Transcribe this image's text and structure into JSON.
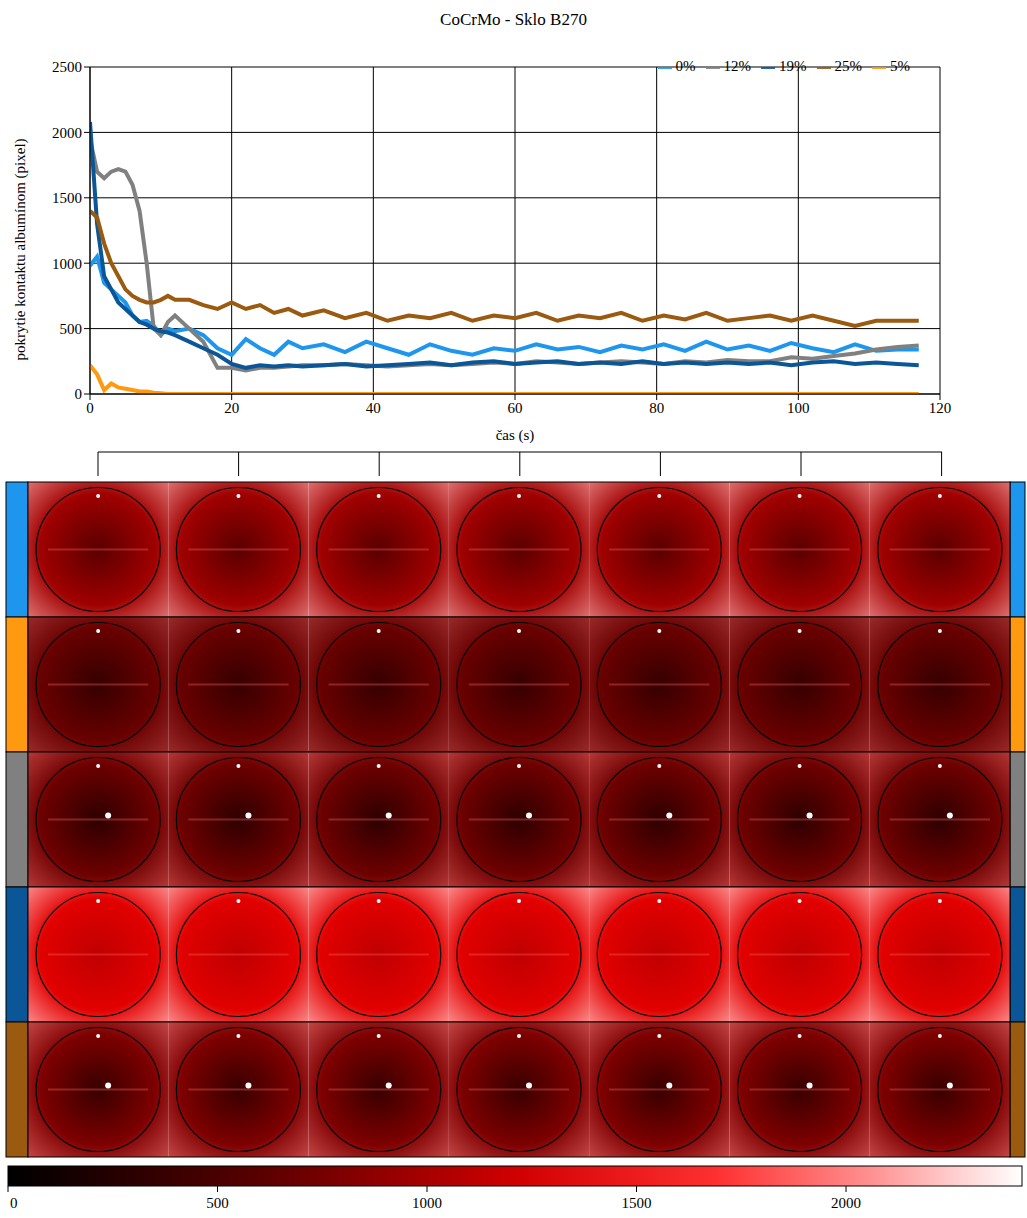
{
  "chart_data": {
    "type": "line",
    "title": "CoCrMo - Sklo B270",
    "x_label": "čas (s)",
    "y_label": "pokrytie kontaktu albumínom (pixel)",
    "x": [
      0,
      1,
      2,
      3,
      4,
      5,
      6,
      7,
      8,
      9,
      10,
      11,
      12,
      14,
      16,
      18,
      20,
      22,
      24,
      26,
      28,
      30,
      33,
      36,
      39,
      42,
      45,
      48,
      51,
      54,
      57,
      60,
      63,
      66,
      69,
      72,
      75,
      78,
      81,
      84,
      87,
      90,
      93,
      96,
      99,
      102,
      105,
      108,
      111,
      114,
      117
    ],
    "series": [
      {
        "name": "0%",
        "color": "#1e96ee",
        "values": [
          980,
          1050,
          850,
          800,
          750,
          700,
          600,
          550,
          560,
          520,
          450,
          500,
          480,
          500,
          450,
          350,
          300,
          420,
          350,
          300,
          400,
          350,
          380,
          320,
          400,
          350,
          300,
          380,
          330,
          300,
          350,
          330,
          380,
          340,
          360,
          320,
          370,
          340,
          380,
          330,
          400,
          340,
          370,
          330,
          390,
          350,
          320,
          380,
          330,
          340,
          340
        ]
      },
      {
        "name": "5%",
        "color": "#ff9a10",
        "values": [
          220,
          150,
          30,
          80,
          50,
          40,
          30,
          20,
          20,
          10,
          5,
          0,
          0,
          0,
          0,
          0,
          0,
          0,
          0,
          0,
          0,
          0,
          0,
          0,
          0,
          0,
          0,
          0,
          0,
          0,
          0,
          0,
          0,
          0,
          0,
          0,
          0,
          0,
          0,
          0,
          0,
          0,
          0,
          0,
          0,
          0,
          0,
          0,
          0,
          0,
          0
        ]
      },
      {
        "name": "12%",
        "color": "#808080",
        "values": [
          1950,
          1700,
          1650,
          1700,
          1720,
          1700,
          1600,
          1400,
          1000,
          500,
          450,
          550,
          600,
          500,
          400,
          200,
          200,
          180,
          200,
          200,
          210,
          220,
          220,
          230,
          220,
          210,
          220,
          230,
          220,
          230,
          240,
          230,
          250,
          240,
          230,
          240,
          250,
          240,
          230,
          250,
          240,
          260,
          250,
          250,
          280,
          270,
          290,
          310,
          340,
          360,
          370
        ]
      },
      {
        "name": "19%",
        "color": "#0b5696",
        "values": [
          2080,
          1300,
          900,
          800,
          700,
          650,
          600,
          550,
          530,
          500,
          480,
          470,
          450,
          400,
          350,
          300,
          230,
          200,
          220,
          210,
          220,
          210,
          220,
          230,
          210,
          220,
          230,
          240,
          220,
          240,
          250,
          230,
          240,
          250,
          230,
          240,
          230,
          250,
          230,
          240,
          230,
          240,
          230,
          240,
          220,
          240,
          250,
          230,
          240,
          230,
          220
        ]
      },
      {
        "name": "25%",
        "color": "#9a5a10",
        "values": [
          1400,
          1350,
          1150,
          1000,
          900,
          800,
          750,
          720,
          700,
          700,
          720,
          750,
          720,
          720,
          680,
          650,
          700,
          650,
          680,
          620,
          650,
          600,
          640,
          580,
          620,
          560,
          600,
          580,
          620,
          560,
          600,
          580,
          620,
          560,
          600,
          580,
          620,
          560,
          600,
          570,
          620,
          560,
          580,
          600,
          560,
          600,
          560,
          520,
          560,
          560,
          560
        ]
      }
    ],
    "xlim": [
      0,
      120
    ],
    "xticks": [
      0,
      20,
      40,
      60,
      80,
      100,
      120
    ],
    "ylim": [
      0,
      2500
    ],
    "yticks": [
      0,
      500,
      1000,
      1500,
      2000,
      2500
    ],
    "grid": true,
    "legend": "top-right",
    "colorbar": {
      "range": [
        0,
        2420
      ],
      "ticks": [
        0,
        500,
        1000,
        1500,
        2000
      ]
    }
  }
}
